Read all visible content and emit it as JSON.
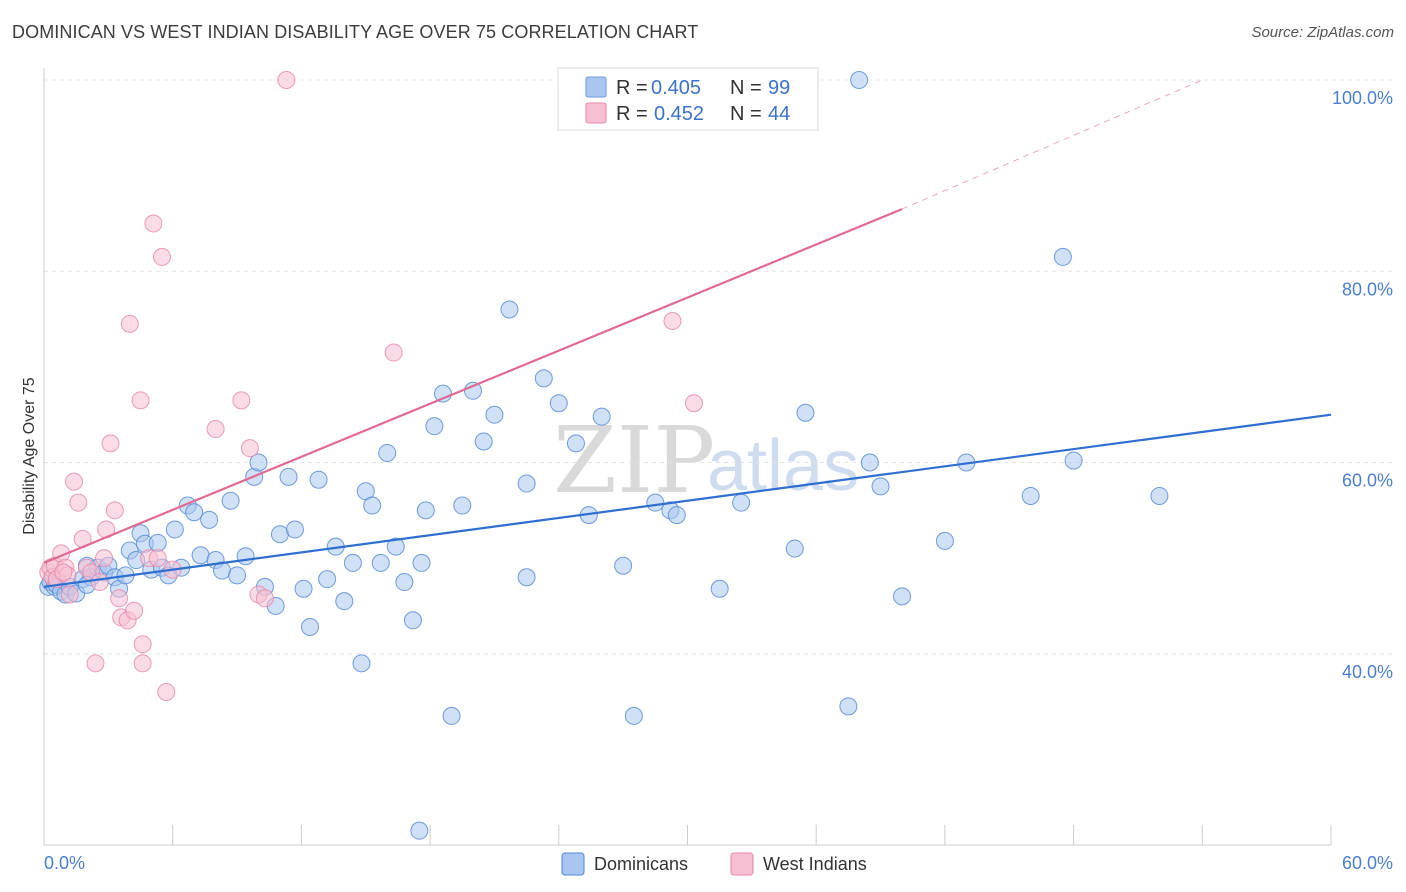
{
  "header": {
    "title": "DOMINICAN VS WEST INDIAN DISABILITY AGE OVER 75 CORRELATION CHART",
    "source": "Source: ZipAtlas.com"
  },
  "watermark": {
    "zip": "ZIP",
    "atlas": "atlas"
  },
  "stats_legend": [
    {
      "r_label": "R = ",
      "r_value": "0.405",
      "n_label": "N = ",
      "n_value": "99",
      "color": "#a9c6f0",
      "stroke": "#6f9be0"
    },
    {
      "r_label": "R = ",
      "r_value": "0.452",
      "n_label": "N = ",
      "n_value": "44",
      "color": "#f7c0d2",
      "stroke": "#e888aa"
    }
  ],
  "chart_data": {
    "type": "scatter",
    "xlabel": "",
    "ylabel": "Disability Age Over 75",
    "xlim": [
      0,
      60
    ],
    "ylim": [
      20,
      100
    ],
    "x_tick_labels": [
      "0.0%",
      "60.0%"
    ],
    "y_ticks": [
      {
        "value": 40,
        "label": "40.0%"
      },
      {
        "value": 60,
        "label": "60.0%"
      },
      {
        "value": 80,
        "label": "80.0%"
      },
      {
        "value": 100,
        "label": "100.0%"
      }
    ],
    "grid": true,
    "legend_placement": "bottom-center",
    "series": [
      {
        "name": "Dominicans",
        "color": "#a9c6f0",
        "stroke": "#4f86d8",
        "trend_color": "#2f6fd1",
        "trend": {
          "x0": 0.0,
          "y0": 47.0,
          "x1": 60.0,
          "y1": 65.0
        },
        "points": [
          [
            0.2,
            47.0
          ],
          [
            0.3,
            47.5
          ],
          [
            0.4,
            48.0
          ],
          [
            0.5,
            47.0
          ],
          [
            0.6,
            47.2
          ],
          [
            0.8,
            46.5
          ],
          [
            1.0,
            46.2
          ],
          [
            1.2,
            47.0
          ],
          [
            1.5,
            46.3
          ],
          [
            1.8,
            47.8
          ],
          [
            2.0,
            49.2
          ],
          [
            2.2,
            48.0
          ],
          [
            2.5,
            49.0
          ],
          [
            2.8,
            48.5
          ],
          [
            3.0,
            49.2
          ],
          [
            3.3,
            48.0
          ],
          [
            3.5,
            46.8
          ],
          [
            3.8,
            48.2
          ],
          [
            4.0,
            50.8
          ],
          [
            4.3,
            49.8
          ],
          [
            4.5,
            52.6
          ],
          [
            4.7,
            51.5
          ],
          [
            5.0,
            48.8
          ],
          [
            5.3,
            51.6
          ],
          [
            5.5,
            49.0
          ],
          [
            5.8,
            48.2
          ],
          [
            6.1,
            53.0
          ],
          [
            6.4,
            49.0
          ],
          [
            6.7,
            55.5
          ],
          [
            7.0,
            54.8
          ],
          [
            7.3,
            50.3
          ],
          [
            7.7,
            54.0
          ],
          [
            8.0,
            49.8
          ],
          [
            8.3,
            48.7
          ],
          [
            8.7,
            56.0
          ],
          [
            9.0,
            48.2
          ],
          [
            9.4,
            50.2
          ],
          [
            9.8,
            58.5
          ],
          [
            10.0,
            60.0
          ],
          [
            10.3,
            47.0
          ],
          [
            10.8,
            45.0
          ],
          [
            11.0,
            52.5
          ],
          [
            11.4,
            58.5
          ],
          [
            11.7,
            53.0
          ],
          [
            12.1,
            46.8
          ],
          [
            12.4,
            42.8
          ],
          [
            12.8,
            58.2
          ],
          [
            13.2,
            47.8
          ],
          [
            13.6,
            51.2
          ],
          [
            14.0,
            45.5
          ],
          [
            14.4,
            49.5
          ],
          [
            14.8,
            39.0
          ],
          [
            15.0,
            57.0
          ],
          [
            15.3,
            55.5
          ],
          [
            15.7,
            49.5
          ],
          [
            16.0,
            61.0
          ],
          [
            16.4,
            51.2
          ],
          [
            16.8,
            47.5
          ],
          [
            17.2,
            43.5
          ],
          [
            17.6,
            49.5
          ],
          [
            17.8,
            55.0
          ],
          [
            18.2,
            63.8
          ],
          [
            18.6,
            67.2
          ],
          [
            19.0,
            33.5
          ],
          [
            19.5,
            55.5
          ],
          [
            20.0,
            67.5
          ],
          [
            20.5,
            62.2
          ],
          [
            21.0,
            65.0
          ],
          [
            21.7,
            76.0
          ],
          [
            22.5,
            48.0
          ],
          [
            22.5,
            57.8
          ],
          [
            23.3,
            68.8
          ],
          [
            24.0,
            66.2
          ],
          [
            24.8,
            62.0
          ],
          [
            25.4,
            54.5
          ],
          [
            26.0,
            64.8
          ],
          [
            27.0,
            49.2
          ],
          [
            27.5,
            33.5
          ],
          [
            28.5,
            55.8
          ],
          [
            29.2,
            55.0
          ],
          [
            29.5,
            54.5
          ],
          [
            31.5,
            46.8
          ],
          [
            32.5,
            55.8
          ],
          [
            33.5,
            100.0
          ],
          [
            35.0,
            51.0
          ],
          [
            35.5,
            65.2
          ],
          [
            37.5,
            34.5
          ],
          [
            38.0,
            100.0
          ],
          [
            38.5,
            60.0
          ],
          [
            39.0,
            57.5
          ],
          [
            40.0,
            46.0
          ],
          [
            42.0,
            51.8
          ],
          [
            43.0,
            60.0
          ],
          [
            46.0,
            56.5
          ],
          [
            47.5,
            81.5
          ],
          [
            48.0,
            60.2
          ],
          [
            52.0,
            56.5
          ],
          [
            17.5,
            21.5
          ],
          [
            2.0,
            47.2
          ]
        ]
      },
      {
        "name": "West Indians",
        "color": "#f7c0d2",
        "stroke": "#e684a6",
        "trend_color": "#e06a92",
        "trend": {
          "x0": 0.0,
          "y0": 49.5,
          "x1": 40.0,
          "y1": 86.5
        },
        "trend_dashed": {
          "x0": 40.0,
          "y0": 86.5,
          "x1": 54.0,
          "y1": 100.0
        },
        "points": [
          [
            0.2,
            48.5
          ],
          [
            0.3,
            49.0
          ],
          [
            0.4,
            48.0
          ],
          [
            0.5,
            49.2
          ],
          [
            0.6,
            47.8
          ],
          [
            0.8,
            50.5
          ],
          [
            1.0,
            49.0
          ],
          [
            1.1,
            48.2
          ],
          [
            1.2,
            46.2
          ],
          [
            1.4,
            58.0
          ],
          [
            1.6,
            55.8
          ],
          [
            1.8,
            52.0
          ],
          [
            2.0,
            49.0
          ],
          [
            2.2,
            48.5
          ],
          [
            2.4,
            39.0
          ],
          [
            2.6,
            47.5
          ],
          [
            2.8,
            50.0
          ],
          [
            2.9,
            53.0
          ],
          [
            3.1,
            62.0
          ],
          [
            3.3,
            55.0
          ],
          [
            3.5,
            45.8
          ],
          [
            3.6,
            43.8
          ],
          [
            3.9,
            43.5
          ],
          [
            4.0,
            74.5
          ],
          [
            4.2,
            44.5
          ],
          [
            4.5,
            66.5
          ],
          [
            4.6,
            41.0
          ],
          [
            4.6,
            39.0
          ],
          [
            4.9,
            50.0
          ],
          [
            5.1,
            85.0
          ],
          [
            5.3,
            50.0
          ],
          [
            5.5,
            81.5
          ],
          [
            5.7,
            36.0
          ],
          [
            6.0,
            48.8
          ],
          [
            8.0,
            63.5
          ],
          [
            9.2,
            66.5
          ],
          [
            9.6,
            61.5
          ],
          [
            10.0,
            46.2
          ],
          [
            10.3,
            45.8
          ],
          [
            11.3,
            100.0
          ],
          [
            16.3,
            71.5
          ],
          [
            29.3,
            74.8
          ],
          [
            30.3,
            66.2
          ],
          [
            0.9,
            48.5
          ]
        ]
      }
    ]
  }
}
